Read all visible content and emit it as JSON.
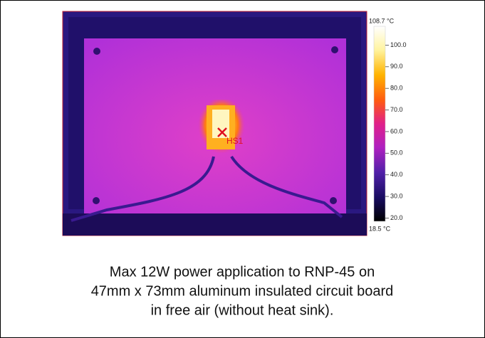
{
  "thermal_image": {
    "marker_label": "HS1",
    "scale": {
      "max_label": "108.7 °C",
      "min_label": "18.5 °C",
      "range": [
        18.5,
        108.7
      ],
      "ticks": [
        {
          "value": 100,
          "label": "100.0"
        },
        {
          "value": 90,
          "label": "90.0"
        },
        {
          "value": 80,
          "label": "80.0"
        },
        {
          "value": 70,
          "label": "70.0"
        },
        {
          "value": 60,
          "label": "60.0"
        },
        {
          "value": 50,
          "label": "50.0"
        },
        {
          "value": 40,
          "label": "40.0"
        },
        {
          "value": 30,
          "label": "30.0"
        },
        {
          "value": 20,
          "label": "20.0"
        }
      ]
    }
  },
  "caption": [
    "Max 12W power application to RNP-45 on",
    "47mm x 73mm aluminum insulated circuit board",
    "in free air (without heat sink)."
  ]
}
